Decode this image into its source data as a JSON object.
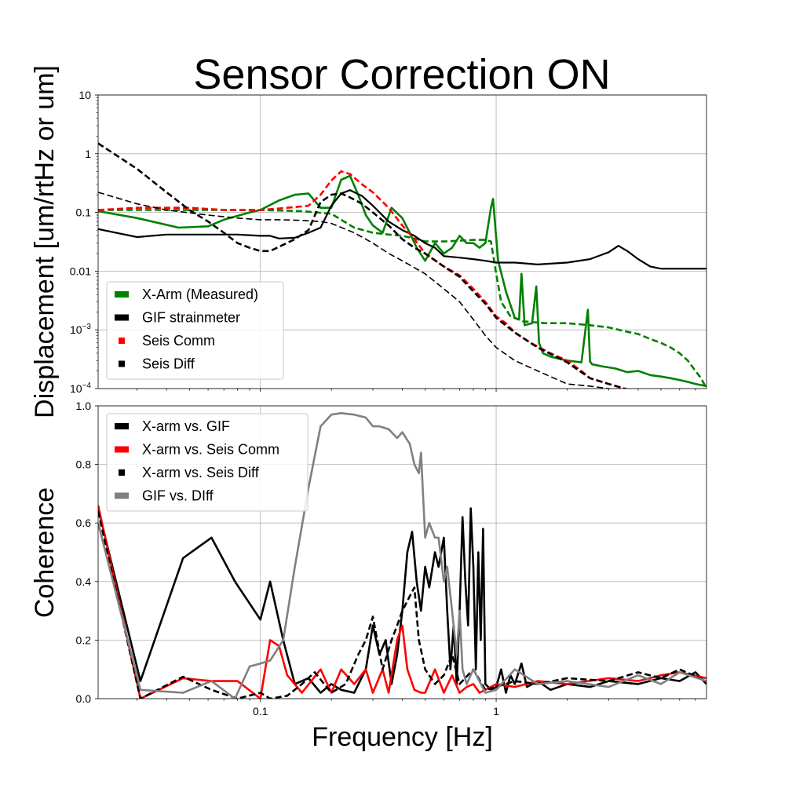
{
  "title": "Sensor Correction ON",
  "chart_data": [
    {
      "type": "line",
      "panel": "top",
      "ylabel": "Displacement [um/rtHz or um]",
      "xscale": "log",
      "yscale": "log",
      "xlim": [
        0.0205,
        7.8
      ],
      "ylim": [
        0.0001,
        10
      ],
      "grid": true,
      "legend_position": "lower-left",
      "yticks": [
        {
          "value": 10,
          "label": "10"
        },
        {
          "value": 1,
          "label": "1"
        },
        {
          "value": 0.1,
          "label": "0.1"
        },
        {
          "value": 0.01,
          "label": "0.01"
        },
        {
          "value": 0.001,
          "label": "10−3"
        },
        {
          "value": 0.0001,
          "label": "10−4"
        }
      ],
      "series": [
        {
          "name": "X-Arm (Measured)",
          "color": "#008000",
          "style": "solid",
          "width": 2.6,
          "x": [
            0.0205,
            0.03,
            0.045,
            0.06,
            0.07,
            0.09,
            0.1,
            0.12,
            0.14,
            0.16,
            0.18,
            0.2,
            0.22,
            0.24,
            0.26,
            0.28,
            0.3,
            0.33,
            0.36,
            0.4,
            0.43,
            0.46,
            0.5,
            0.55,
            0.6,
            0.65,
            0.7,
            0.75,
            0.8,
            0.85,
            0.9,
            0.95,
            0.97,
            0.99,
            1.02,
            1.1,
            1.2,
            1.25,
            1.28,
            1.32,
            1.42,
            1.48,
            1.52,
            1.58,
            1.7,
            2.0,
            2.3,
            2.45,
            2.5,
            2.55,
            2.8,
            3.2,
            3.6,
            4.0,
            4.5,
            5.0,
            5.5,
            6.0,
            6.5,
            7.0,
            7.8
          ],
          "y": [
            0.105,
            0.08,
            0.055,
            0.058,
            0.075,
            0.1,
            0.11,
            0.16,
            0.2,
            0.21,
            0.12,
            0.12,
            0.36,
            0.42,
            0.2,
            0.09,
            0.06,
            0.045,
            0.12,
            0.08,
            0.045,
            0.025,
            0.015,
            0.03,
            0.02,
            0.025,
            0.04,
            0.03,
            0.03,
            0.025,
            0.03,
            0.12,
            0.17,
            0.06,
            0.015,
            0.0045,
            0.0016,
            0.0015,
            0.009,
            0.0012,
            0.0013,
            0.0055,
            0.0006,
            0.0004,
            0.00035,
            0.0003,
            0.00028,
            0.0022,
            0.00029,
            0.00026,
            0.00024,
            0.00022,
            0.00019,
            0.0002,
            0.00017,
            0.00016,
            0.00015,
            0.00014,
            0.00013,
            0.00012,
            0.00011
          ]
        },
        {
          "name": "X-Arm (Measured) model",
          "color": "#008000",
          "style": "dashed",
          "width": 2.6,
          "x": [
            0.0205,
            0.05,
            0.08,
            0.1,
            0.15,
            0.2,
            0.25,
            0.3,
            0.35,
            0.4,
            0.45,
            0.5,
            0.6,
            0.7,
            0.8,
            0.9,
            0.95,
            1.0,
            1.05,
            1.15,
            1.3,
            1.6,
            2.0,
            2.5,
            3.0,
            3.5,
            4.0,
            4.5,
            5.0,
            5.5,
            6.0,
            6.5,
            7.0,
            7.4,
            7.8
          ],
          "y": [
            0.11,
            0.11,
            0.11,
            0.11,
            0.105,
            0.095,
            0.055,
            0.045,
            0.042,
            0.04,
            0.036,
            0.032,
            0.032,
            0.033,
            0.034,
            0.034,
            0.032,
            0.009,
            0.003,
            0.0017,
            0.0014,
            0.0013,
            0.0013,
            0.0012,
            0.0011,
            0.00095,
            0.00085,
            0.0007,
            0.0006,
            0.0005,
            0.0004,
            0.0003,
            0.0002,
            0.00015,
            0.0001
          ]
        },
        {
          "name": "GIF strainmeter",
          "color": "#000000",
          "style": "solid",
          "width": 2.2,
          "x": [
            0.0205,
            0.03,
            0.04,
            0.06,
            0.08,
            0.1,
            0.11,
            0.12,
            0.14,
            0.16,
            0.18,
            0.2,
            0.22,
            0.24,
            0.27,
            0.3,
            0.35,
            0.4,
            0.45,
            0.5,
            0.55,
            0.6,
            0.7,
            0.8,
            0.9,
            1.0,
            1.2,
            1.5,
            2.0,
            2.5,
            3.0,
            3.3,
            3.6,
            4.0,
            4.5,
            5.0,
            6.0,
            7.0,
            7.8
          ],
          "y": [
            0.052,
            0.038,
            0.042,
            0.042,
            0.042,
            0.04,
            0.04,
            0.036,
            0.037,
            0.045,
            0.055,
            0.13,
            0.21,
            0.24,
            0.19,
            0.13,
            0.07,
            0.05,
            0.04,
            0.03,
            0.025,
            0.018,
            0.017,
            0.016,
            0.015,
            0.014,
            0.014,
            0.013,
            0.014,
            0.016,
            0.021,
            0.027,
            0.022,
            0.016,
            0.012,
            0.011,
            0.011,
            0.011,
            0.011
          ]
        },
        {
          "name": "Seis Comm",
          "color": "#ff0000",
          "style": "dashed",
          "width": 2.6,
          "x": [
            0.0205,
            0.03,
            0.04,
            0.05,
            0.07,
            0.1,
            0.13,
            0.16,
            0.18,
            0.2,
            0.22,
            0.24,
            0.27,
            0.3,
            0.35,
            0.4,
            0.45,
            0.5,
            0.6,
            0.7,
            0.8,
            0.9,
            1.0,
            1.1,
            1.2,
            1.4,
            1.7,
            2.0,
            2.3,
            2.5,
            3.0,
            3.5,
            4.0,
            4.5
          ],
          "y": [
            0.11,
            0.12,
            0.12,
            0.12,
            0.11,
            0.11,
            0.12,
            0.13,
            0.2,
            0.35,
            0.5,
            0.45,
            0.3,
            0.22,
            0.12,
            0.06,
            0.035,
            0.02,
            0.012,
            0.0085,
            0.005,
            0.003,
            0.0017,
            0.0013,
            0.0009,
            0.0006,
            0.0004,
            0.0003,
            0.0002,
            0.00015,
            0.00012,
            0.0001,
            9e-05,
            8e-05
          ]
        },
        {
          "name": "Seis Diff",
          "color": "#000000",
          "style": "dashed",
          "width": 2.6,
          "x": [
            0.0205,
            0.03,
            0.04,
            0.05,
            0.06,
            0.07,
            0.08,
            0.09,
            0.1,
            0.11,
            0.12,
            0.14,
            0.16,
            0.18,
            0.2,
            0.22,
            0.24,
            0.27,
            0.3,
            0.35,
            0.4,
            0.45,
            0.5,
            0.6,
            0.7,
            0.8,
            0.9,
            1.0,
            1.2,
            1.5,
            2.0,
            2.5,
            3.0,
            3.5,
            4.0
          ],
          "y": [
            1.5,
            0.55,
            0.22,
            0.11,
            0.07,
            0.045,
            0.03,
            0.025,
            0.022,
            0.022,
            0.026,
            0.035,
            0.05,
            0.15,
            0.2,
            0.21,
            0.18,
            0.14,
            0.1,
            0.06,
            0.035,
            0.025,
            0.02,
            0.012,
            0.008,
            0.0045,
            0.0028,
            0.0016,
            0.0009,
            0.0005,
            0.00028,
            0.00015,
            0.00012,
            0.0001,
            8e-05
          ]
        },
        {
          "name": "Seis Diff (thin)",
          "color": "#000000",
          "style": "dashed",
          "width": 1.6,
          "x": [
            0.0205,
            0.03,
            0.04,
            0.06,
            0.08,
            0.1,
            0.12,
            0.15,
            0.18,
            0.2,
            0.25,
            0.3,
            0.35,
            0.4,
            0.5,
            0.6,
            0.7,
            0.8,
            0.9,
            1.0,
            1.2,
            1.5,
            2.0,
            2.5,
            3.0,
            3.5,
            4.0,
            4.5
          ],
          "y": [
            0.22,
            0.14,
            0.11,
            0.09,
            0.08,
            0.075,
            0.075,
            0.073,
            0.07,
            0.065,
            0.045,
            0.03,
            0.02,
            0.015,
            0.009,
            0.005,
            0.003,
            0.0015,
            0.0008,
            0.0005,
            0.0003,
            0.0002,
            0.00012,
            0.00011,
            0.0001,
            9e-05,
            8e-05,
            7e-05
          ]
        }
      ],
      "legend": [
        {
          "label": "X-Arm (Measured)",
          "color": "#008000",
          "marker": "bar"
        },
        {
          "label": "GIF strainmeter",
          "color": "#000000",
          "marker": "bar"
        },
        {
          "label": "Seis Comm",
          "color": "#ff0000",
          "marker": "square"
        },
        {
          "label": "Seis Diff",
          "color": "#000000",
          "marker": "square"
        }
      ]
    },
    {
      "type": "line",
      "panel": "bottom",
      "xlabel": "Frequency [Hz]",
      "ylabel": "Coherence",
      "xscale": "log",
      "yscale": "linear",
      "xlim": [
        0.0205,
        7.8
      ],
      "ylim": [
        0,
        1
      ],
      "grid": true,
      "legend_position": "upper-left",
      "xticks": [
        {
          "value": 0.1,
          "label": "0.1"
        },
        {
          "value": 1,
          "label": "1"
        }
      ],
      "yticks": [
        {
          "value": 0,
          "label": "0.0"
        },
        {
          "value": 0.2,
          "label": "0.2"
        },
        {
          "value": 0.4,
          "label": "0.4"
        },
        {
          "value": 0.6,
          "label": "0.6"
        },
        {
          "value": 0.8,
          "label": "0.8"
        },
        {
          "value": 1.0,
          "label": "1.0"
        }
      ],
      "series": [
        {
          "name": "X-arm vs. GIF",
          "color": "#000000",
          "style": "solid",
          "width": 2.6,
          "x": [
            0.0205,
            0.031,
            0.047,
            0.062,
            0.078,
            0.1,
            0.11,
            0.125,
            0.14,
            0.16,
            0.18,
            0.2,
            0.22,
            0.25,
            0.28,
            0.3,
            0.32,
            0.34,
            0.36,
            0.38,
            0.4,
            0.42,
            0.44,
            0.46,
            0.48,
            0.5,
            0.52,
            0.55,
            0.57,
            0.6,
            0.62,
            0.64,
            0.66,
            0.68,
            0.7,
            0.72,
            0.74,
            0.76,
            0.78,
            0.8,
            0.82,
            0.84,
            0.86,
            0.88,
            0.9,
            0.95,
            1.0,
            1.05,
            1.1,
            1.15,
            1.2,
            1.28,
            1.35,
            1.5,
            1.7,
            2.0,
            2.5,
            3.0,
            4.0,
            5.0,
            6.0,
            7.0,
            7.8
          ],
          "y": [
            0.65,
            0.06,
            0.48,
            0.55,
            0.4,
            0.27,
            0.4,
            0.2,
            0.05,
            0.07,
            0.02,
            0.05,
            0.03,
            0.02,
            0.1,
            0.25,
            0.15,
            0.2,
            0.05,
            0.15,
            0.3,
            0.5,
            0.57,
            0.4,
            0.3,
            0.45,
            0.38,
            0.5,
            0.45,
            0.55,
            0.3,
            0.1,
            0.25,
            0.05,
            0.3,
            0.62,
            0.4,
            0.25,
            0.65,
            0.45,
            0.1,
            0.5,
            0.2,
            0.58,
            0.05,
            0.03,
            0.04,
            0.1,
            0.02,
            0.08,
            0.05,
            0.12,
            0.04,
            0.06,
            0.03,
            0.05,
            0.04,
            0.06,
            0.05,
            0.07,
            0.06,
            0.09,
            0.05
          ]
        },
        {
          "name": "X-arm vs. Seis Comm",
          "color": "#ff0000",
          "style": "solid",
          "width": 2.6,
          "x": [
            0.0205,
            0.031,
            0.047,
            0.062,
            0.08,
            0.1,
            0.11,
            0.12,
            0.13,
            0.15,
            0.18,
            0.2,
            0.22,
            0.25,
            0.28,
            0.3,
            0.33,
            0.35,
            0.38,
            0.4,
            0.42,
            0.45,
            0.48,
            0.5,
            0.55,
            0.6,
            0.65,
            0.7,
            0.75,
            0.8,
            0.85,
            0.9,
            1.0,
            1.2,
            1.5,
            2.0,
            3.0,
            4.0,
            5.0,
            6.0,
            7.8
          ],
          "y": [
            0.66,
            0.0,
            0.07,
            0.06,
            0.06,
            0.0,
            0.2,
            0.18,
            0.08,
            0.02,
            0.1,
            0.02,
            0.1,
            0.05,
            0.1,
            0.02,
            0.1,
            0.02,
            0.2,
            0.25,
            0.1,
            0.03,
            0.02,
            0.02,
            0.1,
            0.02,
            0.08,
            0.02,
            0.04,
            0.05,
            0.02,
            0.03,
            0.05,
            0.04,
            0.06,
            0.05,
            0.07,
            0.06,
            0.08,
            0.09,
            0.07
          ]
        },
        {
          "name": "X-arm vs. Seis Diff",
          "color": "#000000",
          "style": "dashed",
          "width": 2.6,
          "x": [
            0.0205,
            0.031,
            0.047,
            0.062,
            0.08,
            0.1,
            0.11,
            0.13,
            0.15,
            0.17,
            0.2,
            0.23,
            0.26,
            0.28,
            0.3,
            0.33,
            0.36,
            0.38,
            0.4,
            0.43,
            0.45,
            0.47,
            0.5,
            0.55,
            0.6,
            0.65,
            0.7,
            0.8,
            0.9,
            1.0,
            1.2,
            1.5,
            2.0,
            3.0,
            4.0,
            5.0,
            6.0,
            7.8
          ],
          "y": [
            0.64,
            0.0,
            0.075,
            0.03,
            0.0,
            0.02,
            0.0,
            0.01,
            0.05,
            0.09,
            0.02,
            0.05,
            0.15,
            0.2,
            0.28,
            0.1,
            0.2,
            0.25,
            0.3,
            0.35,
            0.38,
            0.2,
            0.1,
            0.05,
            0.08,
            0.15,
            0.05,
            0.1,
            0.03,
            0.04,
            0.06,
            0.05,
            0.07,
            0.06,
            0.09,
            0.07,
            0.1,
            0.06
          ]
        },
        {
          "name": "GIF vs. DIff",
          "color": "#808080",
          "style": "solid",
          "width": 2.6,
          "x": [
            0.0205,
            0.031,
            0.047,
            0.062,
            0.078,
            0.09,
            0.1,
            0.11,
            0.125,
            0.14,
            0.16,
            0.18,
            0.2,
            0.22,
            0.25,
            0.28,
            0.3,
            0.32,
            0.35,
            0.38,
            0.4,
            0.43,
            0.45,
            0.47,
            0.48,
            0.5,
            0.52,
            0.55,
            0.57,
            0.6,
            0.62,
            0.65,
            0.68,
            0.7,
            0.72,
            0.75,
            0.8,
            0.9,
            1.0,
            1.2,
            1.5,
            2.0,
            3.0,
            4.0,
            5.0,
            6.0,
            7.8
          ],
          "y": [
            0.6,
            0.03,
            0.02,
            0.06,
            0.0,
            0.11,
            0.12,
            0.13,
            0.2,
            0.45,
            0.72,
            0.93,
            0.97,
            0.975,
            0.97,
            0.96,
            0.93,
            0.93,
            0.92,
            0.89,
            0.91,
            0.87,
            0.8,
            0.77,
            0.84,
            0.55,
            0.6,
            0.55,
            0.55,
            0.4,
            0.45,
            0.3,
            0.15,
            0.3,
            0.1,
            0.05,
            0.1,
            0.02,
            0.03,
            0.1,
            0.05,
            0.06,
            0.04,
            0.08,
            0.05,
            0.09,
            0.06
          ]
        }
      ],
      "legend": [
        {
          "label": "X-arm vs. GIF",
          "color": "#000000",
          "marker": "bar"
        },
        {
          "label": "X-arm vs. Seis Comm",
          "color": "#ff0000",
          "marker": "bar"
        },
        {
          "label": "X-arm vs. Seis Diff",
          "color": "#000000",
          "marker": "square"
        },
        {
          "label": "GIF vs. DIff",
          "color": "#808080",
          "marker": "bar"
        }
      ]
    }
  ]
}
